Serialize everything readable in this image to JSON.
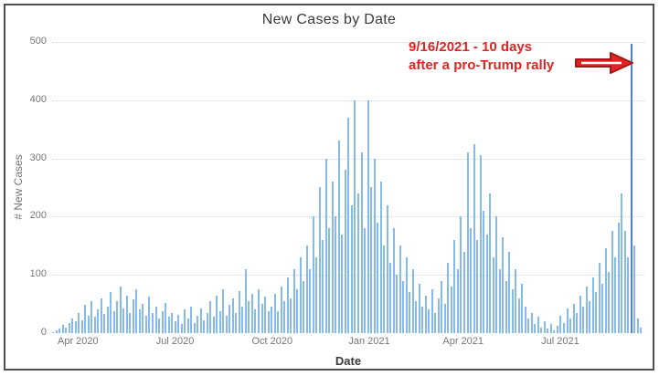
{
  "chart_data": {
    "type": "bar",
    "title": "New Cases by Date",
    "xlabel": "Date",
    "ylabel": "# New Cases",
    "ylim": [
      0,
      500
    ],
    "y_ticks": [
      0,
      100,
      200,
      300,
      400,
      500
    ],
    "grid": "horizontal dotted",
    "legend": "none",
    "series_note": "Daily new-case bars from ~Mar 2020 to ~Sep 2021; values estimated from pixels, sampled about every 3 days",
    "x_ticks": [
      {
        "label": "Apr 2020",
        "index": 8
      },
      {
        "label": "Jul 2020",
        "index": 38
      },
      {
        "label": "Oct 2020",
        "index": 68
      },
      {
        "label": "Jan 2021",
        "index": 98
      },
      {
        "label": "Apr 2021",
        "index": 127
      },
      {
        "label": "Jul 2021",
        "index": 157
      }
    ],
    "values": [
      2,
      5,
      8,
      14,
      10,
      18,
      25,
      20,
      35,
      22,
      48,
      30,
      55,
      28,
      40,
      60,
      33,
      45,
      70,
      38,
      55,
      80,
      42,
      65,
      35,
      58,
      75,
      40,
      50,
      30,
      62,
      35,
      45,
      25,
      38,
      52,
      28,
      35,
      20,
      32,
      15,
      40,
      25,
      45,
      18,
      30,
      42,
      22,
      35,
      55,
      28,
      65,
      38,
      75,
      30,
      48,
      60,
      35,
      72,
      45,
      110,
      55,
      68,
      40,
      75,
      50,
      62,
      38,
      45,
      68,
      38,
      80,
      55,
      95,
      60,
      110,
      75,
      130,
      90,
      150,
      110,
      200,
      130,
      250,
      160,
      300,
      180,
      260,
      200,
      330,
      170,
      280,
      370,
      220,
      400,
      240,
      310,
      180,
      400,
      250,
      300,
      190,
      260,
      150,
      220,
      120,
      180,
      100,
      150,
      90,
      130,
      70,
      110,
      55,
      85,
      45,
      65,
      40,
      75,
      35,
      60,
      90,
      50,
      120,
      80,
      160,
      110,
      200,
      140,
      310,
      180,
      325,
      160,
      305,
      210,
      170,
      240,
      130,
      200,
      110,
      165,
      90,
      140,
      75,
      110,
      60,
      85,
      45,
      25,
      35,
      15,
      28,
      10,
      20,
      8,
      15,
      5,
      12,
      30,
      18,
      42,
      25,
      50,
      35,
      65,
      45,
      80,
      55,
      95,
      70,
      120,
      85,
      145,
      105,
      175,
      130,
      190,
      240,
      175,
      130,
      497,
      150,
      25,
      10
    ],
    "annotation": {
      "line1": "9/16/2021 - 10 days",
      "line2": "after a pro-Trump rally",
      "arrow": "red-right-arrow",
      "target_value": 497,
      "color": "#e02424"
    }
  },
  "colors": {
    "bar": "#85baec",
    "bar_highlight": "#4a86d8",
    "gridline": "#d4d4d4",
    "tick_text": "#777672",
    "title_text": "#3b3a39",
    "annotation_red": "#e02424",
    "panel_border": "#4f4f4f",
    "background": "#ffffff"
  }
}
